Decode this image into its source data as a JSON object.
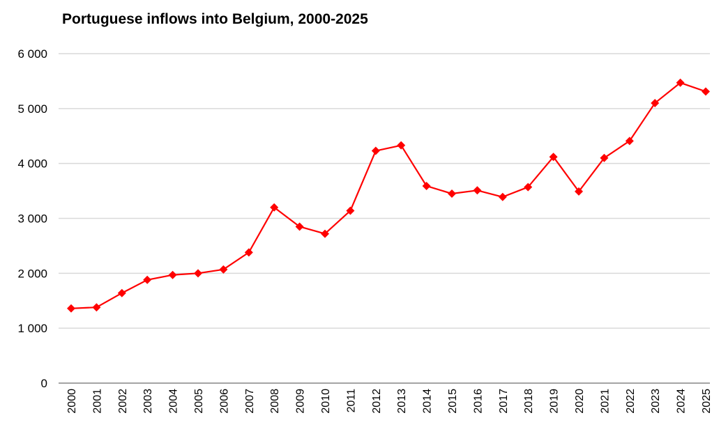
{
  "chart_data": {
    "type": "line",
    "title": "Portuguese inflows into Belgium, 2000-2025",
    "xlabel": "",
    "ylabel": "",
    "ylim": [
      0,
      6000
    ],
    "yticks": [
      0,
      1000,
      2000,
      3000,
      4000,
      5000,
      6000
    ],
    "ytick_labels": [
      "0",
      "1 000",
      "2 000",
      "3 000",
      "4 000",
      "5 000",
      "6 000"
    ],
    "categories": [
      "2000",
      "2001",
      "2002",
      "2003",
      "2004",
      "2005",
      "2006",
      "2007",
      "2008",
      "2009",
      "2010",
      "2011",
      "2012",
      "2013",
      "2014",
      "2015",
      "2016",
      "2017",
      "2018",
      "2019",
      "2020",
      "2021",
      "2022",
      "2023",
      "2024",
      "2025"
    ],
    "series": [
      {
        "values": [
          1360,
          1380,
          1640,
          1880,
          1970,
          2000,
          2070,
          2380,
          3200,
          2850,
          2720,
          3140,
          4230,
          4330,
          3590,
          3450,
          3510,
          3390,
          3570,
          4120,
          3490,
          4100,
          4410,
          5100,
          5470,
          5310
        ],
        "color": "#ff0000",
        "marker": "diamond"
      }
    ],
    "grid": true,
    "legend": "none"
  }
}
